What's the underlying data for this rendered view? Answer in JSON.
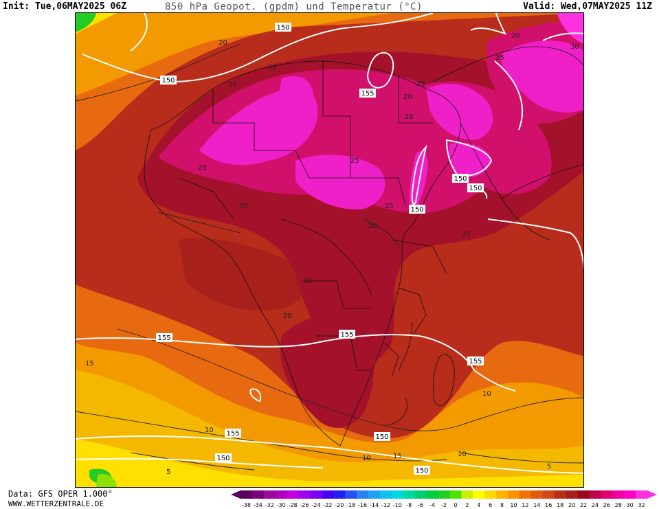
{
  "header": {
    "init": "Init: Tue,06MAY2025 06Z",
    "title": "850 hPa Geopot. (gpdm) und Temperatur (°C)",
    "valid": "Valid: Wed,07MAY2025 11Z"
  },
  "footer": {
    "data_source": "Data: GFS OPER 1.000°",
    "website": "WWW.WETTERZENTRALE.DE"
  },
  "geopotential_labels": [
    "150",
    "150",
    "155",
    "150",
    "150",
    "150",
    "155",
    "155",
    "155",
    "155",
    "150",
    "150",
    "150"
  ],
  "temperature_labels": [
    "20",
    "20",
    "20",
    "25",
    "25",
    "25",
    "25",
    "20",
    "20",
    "25",
    "20",
    "20",
    "20",
    "15",
    "10",
    "10",
    "15",
    "10",
    "10",
    "5",
    "5",
    "30",
    "20",
    "20",
    "25"
  ],
  "colorbar": {
    "labels": [
      "-38",
      "-34",
      "-32",
      "-30",
      "-28",
      "-26",
      "-24",
      "-22",
      "-20",
      "-18",
      "-16",
      "-14",
      "-12",
      "-10",
      "-8",
      "-6",
      "-4",
      "-2",
      "0",
      "2",
      "4",
      "6",
      "8",
      "10",
      "12",
      "14",
      "16",
      "18",
      "20",
      "22",
      "24",
      "26",
      "28",
      "30",
      "32"
    ],
    "colors": [
      "#5a005a",
      "#7a007a",
      "#9a0a9a",
      "#b000c0",
      "#c000e0",
      "#a000f0",
      "#7a00f0",
      "#4a00f0",
      "#2020f0",
      "#2a50f0",
      "#2a80f0",
      "#20a0f0",
      "#10c0f0",
      "#00d8e0",
      "#00d8a0",
      "#00d070",
      "#00d040",
      "#20d020",
      "#50e000",
      "#c8f000",
      "#ffff00",
      "#ffd800",
      "#ffb400",
      "#ff9000",
      "#f07000",
      "#e05a10",
      "#d04818",
      "#b83018",
      "#a8201c",
      "#9a0820",
      "#c0004a",
      "#e00070",
      "#f000a0",
      "#ff00c8",
      "#ff30e0"
    ]
  },
  "legend_colors": {
    "t_5_10": "#f5b800",
    "t_10_15": "#f39a00",
    "t_15_20": "#e86a10",
    "t_20_25": "#b82c1c",
    "t_25_30": "#a3122a",
    "t_30_35": "#d0106a",
    "t_35_plus": "#f020c8",
    "t_under_5": "#ffe000",
    "cold": "#22cc22",
    "border": "#111111",
    "geopot_line": "#ffffff"
  }
}
